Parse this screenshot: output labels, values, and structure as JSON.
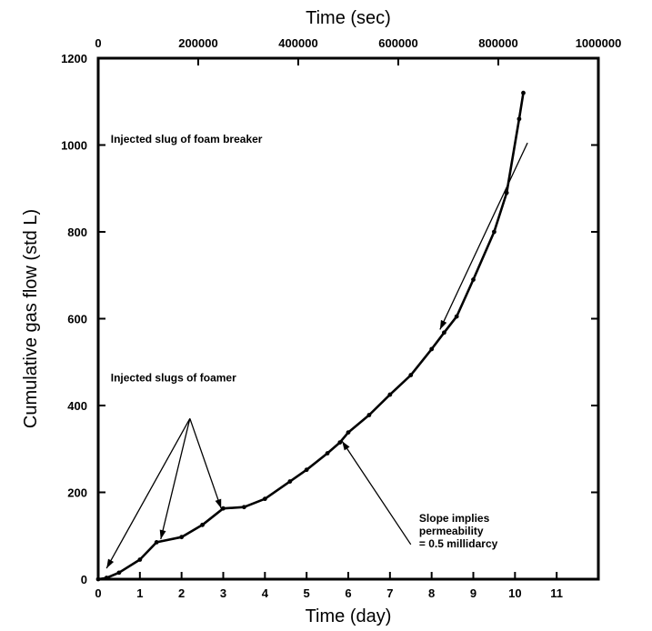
{
  "chart_data": {
    "type": "line",
    "xlabel": "Time (day)",
    "x2label": "Time (sec)",
    "ylabel": "Cumulative gas flow (std L)",
    "xlim": [
      0,
      12
    ],
    "ylim": [
      0,
      1200
    ],
    "x2lim": [
      0,
      1000000
    ],
    "x_ticks": [
      0,
      1,
      2,
      3,
      4,
      5,
      6,
      7,
      8,
      9,
      10,
      11
    ],
    "y_ticks": [
      0,
      200,
      400,
      600,
      800,
      1000,
      1200
    ],
    "x2_ticks": [
      0,
      200000,
      400000,
      600000,
      800000,
      1000000
    ],
    "grid": false,
    "series": [
      {
        "values": [
          [
            0,
            0
          ],
          [
            0.2,
            3
          ],
          [
            0.5,
            15
          ],
          [
            1.0,
            45
          ],
          [
            1.4,
            85
          ],
          [
            2.0,
            97
          ],
          [
            2.5,
            125
          ],
          [
            3.0,
            163
          ],
          [
            3.5,
            166
          ],
          [
            4.0,
            185
          ],
          [
            4.6,
            225
          ],
          [
            5.0,
            252
          ],
          [
            5.5,
            290
          ],
          [
            5.8,
            315
          ],
          [
            6.0,
            338
          ],
          [
            6.5,
            378
          ],
          [
            7.0,
            425
          ],
          [
            7.5,
            470
          ],
          [
            8.0,
            530
          ],
          [
            8.3,
            568
          ],
          [
            8.6,
            605
          ],
          [
            9.0,
            690
          ],
          [
            9.5,
            800
          ],
          [
            9.8,
            890
          ],
          [
            10.1,
            1060
          ],
          [
            10.2,
            1120
          ]
        ]
      }
    ],
    "annotations": [
      {
        "lines": [
          "Injected slug of foam breaker"
        ],
        "text_at": [
          0.3,
          1005
        ],
        "arrows": [
          {
            "from": [
              10.3,
              1005
            ],
            "to": [
              8.2,
              575
            ]
          }
        ]
      },
      {
        "lines": [
          "Injected slugs of foamer"
        ],
        "text_at": [
          0.3,
          455
        ],
        "arrows": [
          {
            "from": [
              2.2,
              370
            ],
            "to": [
              0.2,
              25
            ]
          },
          {
            "from": [
              2.2,
              370
            ],
            "to": [
              1.5,
              92
            ]
          },
          {
            "from": [
              2.2,
              370
            ],
            "to": [
              2.95,
              163
            ]
          }
        ]
      },
      {
        "lines": [
          "Slope implies",
          "permeability",
          "= 0.5 millidarcy"
        ],
        "text_at": [
          7.7,
          132
        ],
        "arrows": [
          {
            "from": [
              7.5,
              80
            ],
            "to": [
              5.85,
              318
            ]
          }
        ]
      }
    ]
  }
}
